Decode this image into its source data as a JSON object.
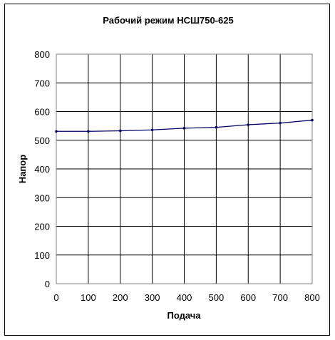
{
  "chart_data": {
    "type": "line",
    "title": "Рабочий режим НСШ750-625",
    "xlabel": "Подача",
    "ylabel": "Напор",
    "x": [
      0,
      100,
      200,
      300,
      400,
      500,
      600,
      700,
      800
    ],
    "series": [
      {
        "values": [
          531,
          531,
          533,
          536,
          542,
          545,
          554,
          560,
          570
        ]
      }
    ],
    "xlim": [
      0,
      800
    ],
    "ylim": [
      0,
      800
    ],
    "xticks": [
      "0",
      "100",
      "200",
      "300",
      "400",
      "500",
      "600",
      "700",
      "800"
    ],
    "yticks": [
      "0",
      "100",
      "200",
      "300",
      "400",
      "500",
      "600",
      "700",
      "800"
    ],
    "grid": true,
    "legend": "none",
    "colors": {
      "line": "#000066",
      "grid": "#000000",
      "background": "#ffffff"
    }
  }
}
